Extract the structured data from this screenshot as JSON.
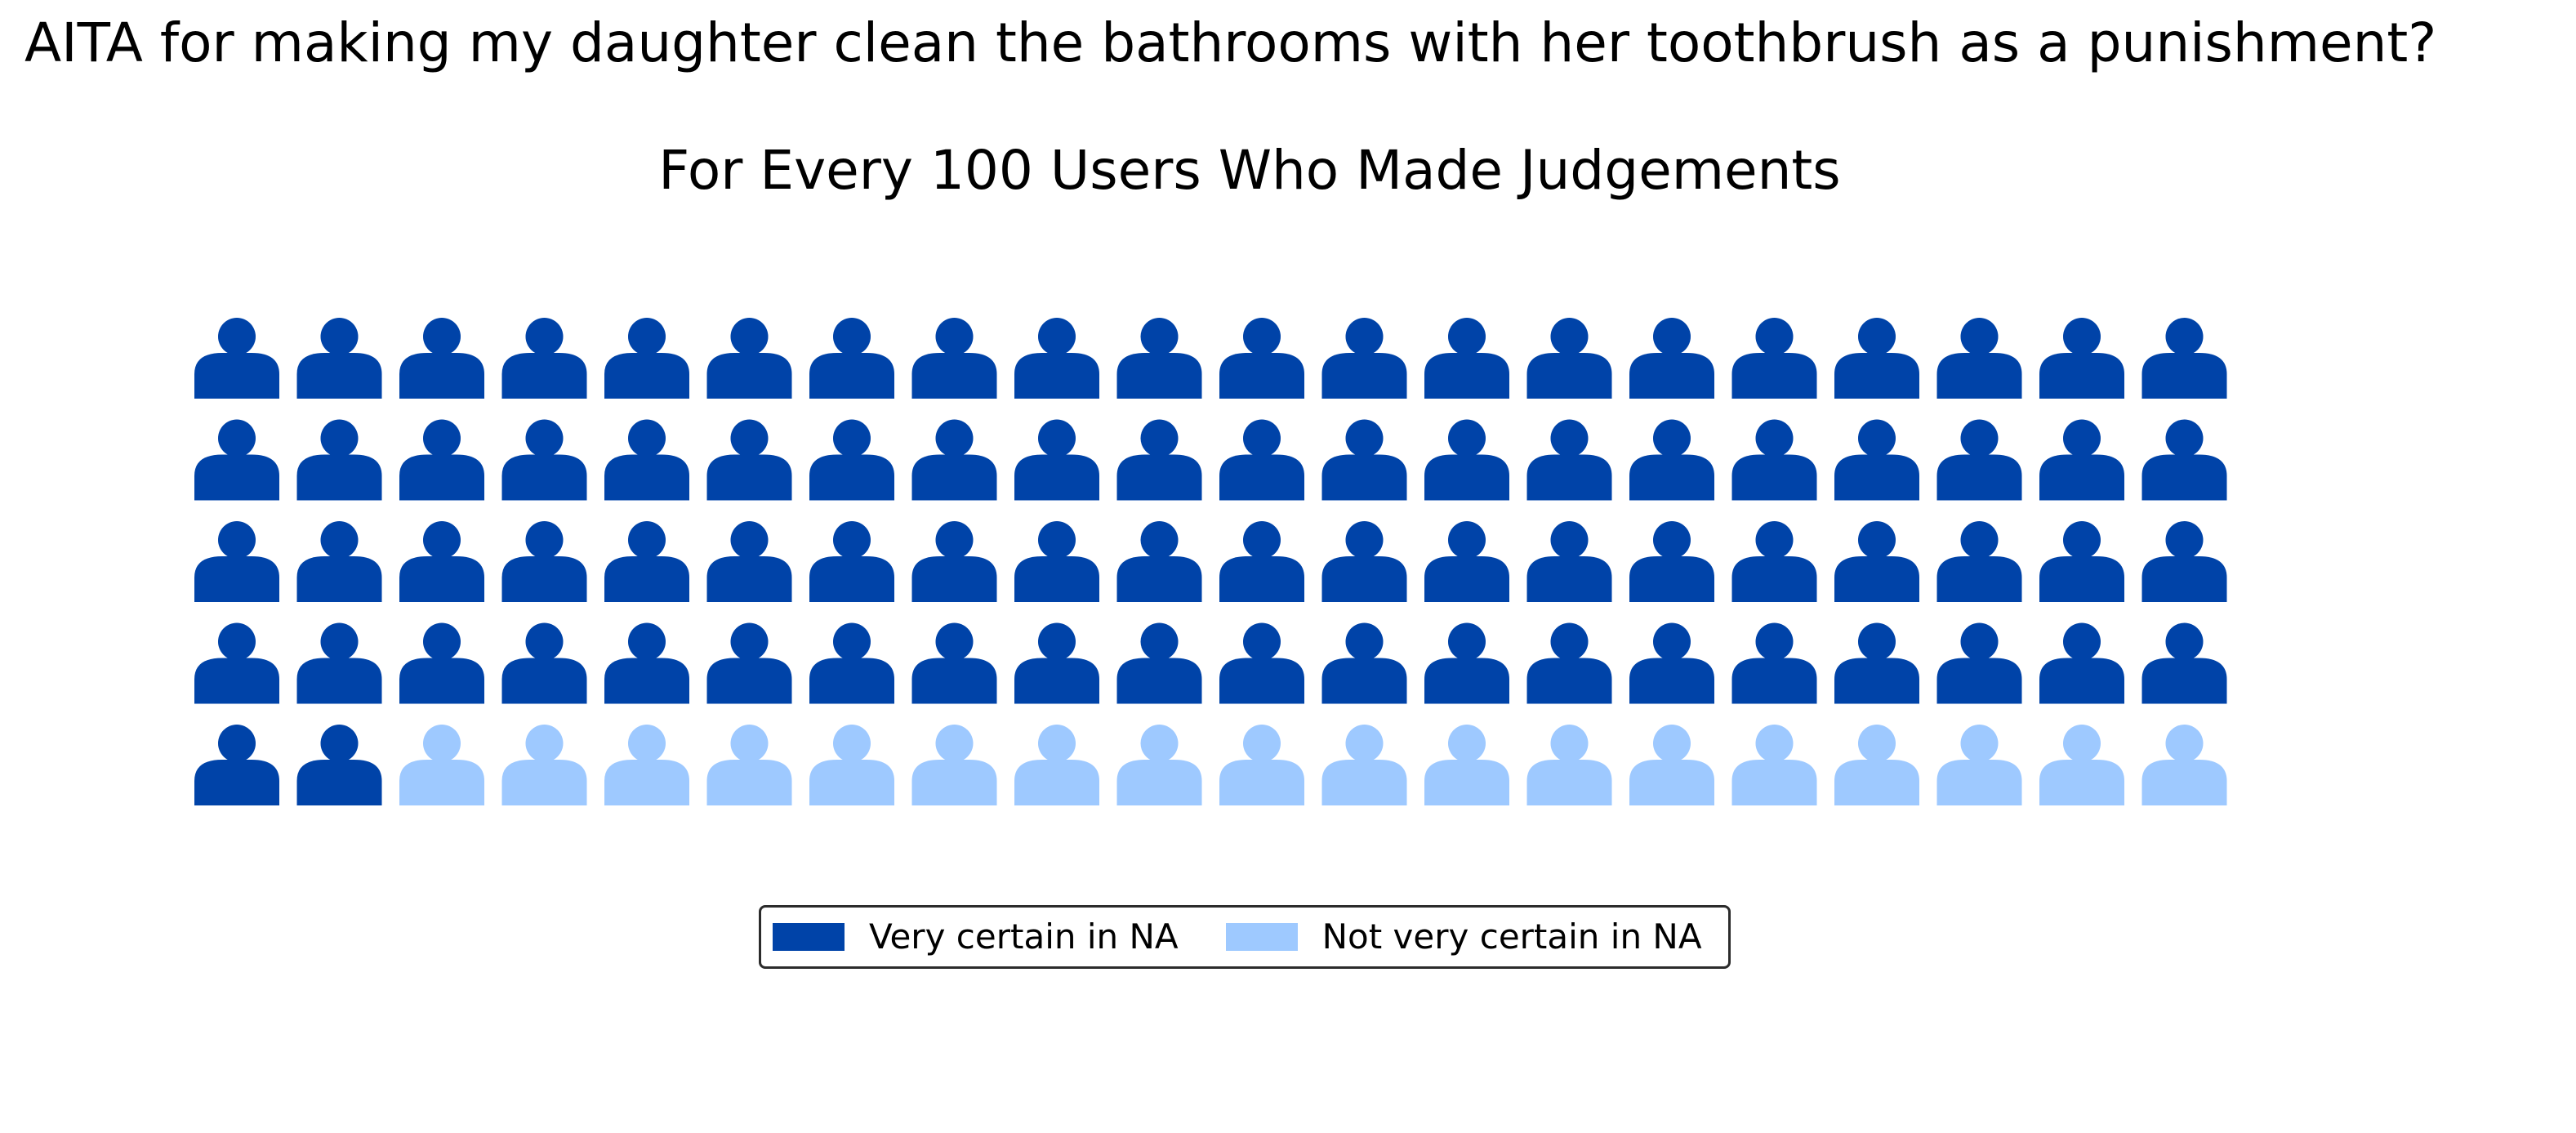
{
  "title": "AITA for making my daughter clean the bathrooms with her toothbrush as a punishment?",
  "chart_data": {
    "type": "waffle",
    "subtitle": "For Every 100 Users Who Made Judgements",
    "total": 100,
    "rows": 5,
    "columns": 20,
    "icon": "person-icon",
    "categories": [
      "Very certain in NA",
      "Not very certain in NA"
    ],
    "values": [
      82,
      18
    ],
    "colors": [
      "#0043a8",
      "#9ec9ff"
    ],
    "legend_position": "bottom-center"
  }
}
